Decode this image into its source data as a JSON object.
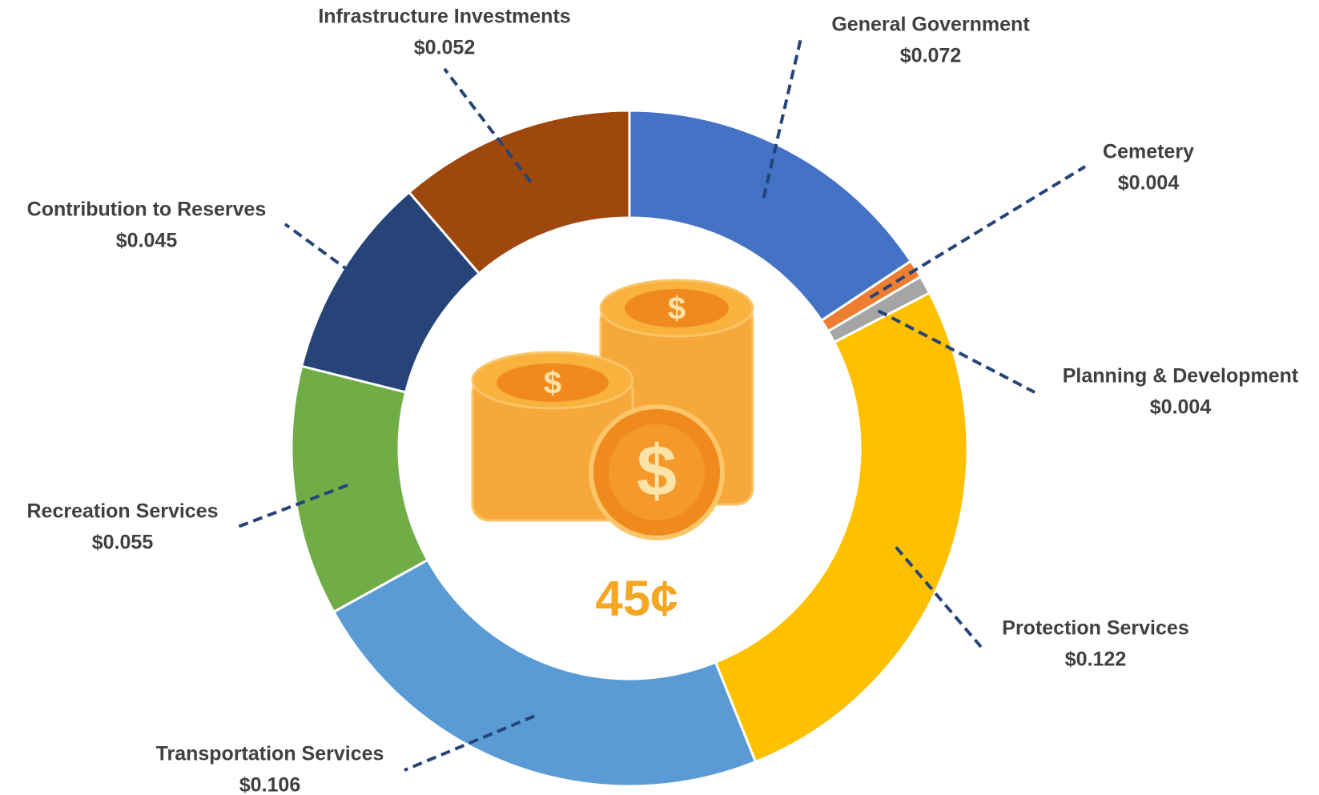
{
  "chart_data": {
    "type": "donut",
    "categories": [
      "General Government",
      "Cemetery",
      "Planning & Development",
      "Protection Services",
      "Transportation Services",
      "Recreation Services",
      "Contribution to Reserves",
      "Infrastructure Investments"
    ],
    "values": [
      0.072,
      0.004,
      0.004,
      0.122,
      0.106,
      0.055,
      0.045,
      0.052
    ],
    "value_labels": [
      "$0.072",
      "$0.004",
      "$0.004",
      "$0.122",
      "$0.106",
      "$0.055",
      "$0.045",
      "$0.052"
    ],
    "colors": [
      "#4472c4",
      "#ed7d31",
      "#a5a5a5",
      "#ffc000",
      "#5b9bd5",
      "#70ad47",
      "#264478",
      "#9e480e"
    ],
    "center_label": "45¢"
  }
}
